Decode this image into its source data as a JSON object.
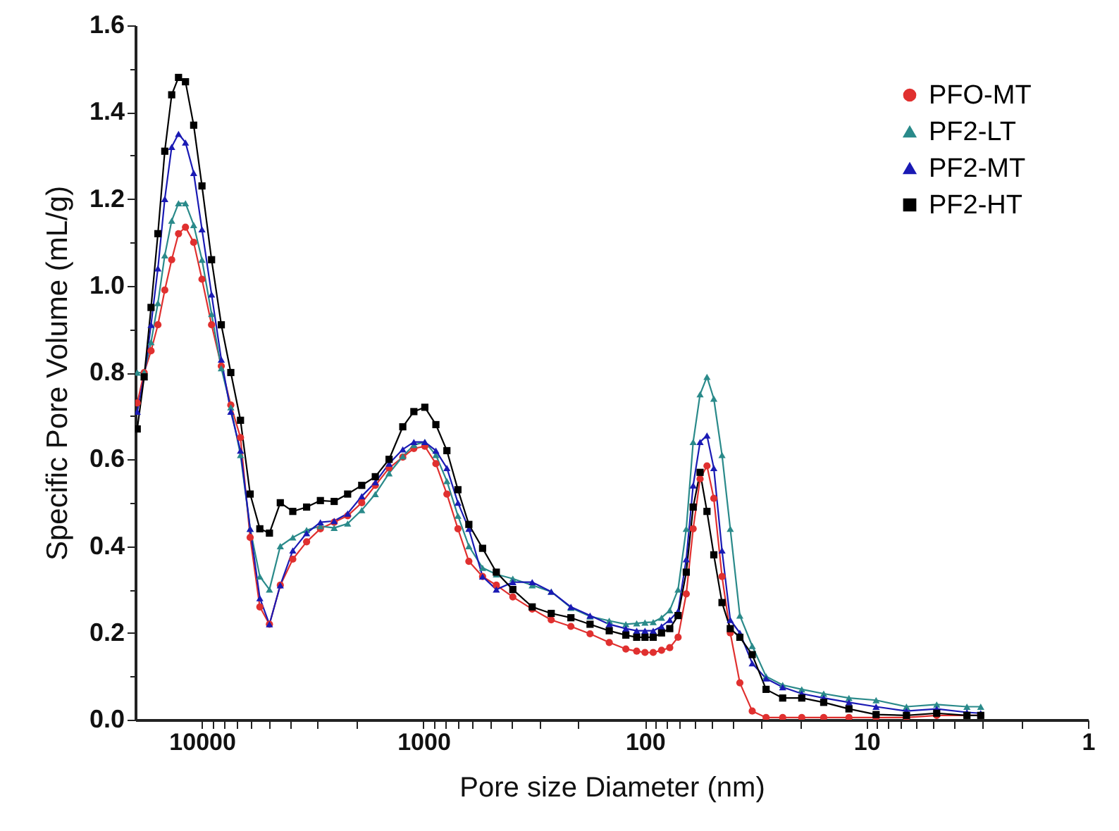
{
  "chart_data": {
    "type": "line",
    "xlabel": "Pore size Diameter (nm)",
    "ylabel": "Specific Pore Volume (mL/g)",
    "log": "x",
    "grid": false,
    "legend": "top right",
    "line_style": "solid",
    "xlim": [
      20000,
      1
    ],
    "xticks": [
      {
        "value": 9000,
        "label": null
      },
      {
        "value": 8000,
        "label": null
      },
      {
        "value": 7000,
        "label": null
      },
      {
        "value": 6000,
        "label": null
      },
      {
        "value": 5000,
        "label": null
      },
      {
        "value": 4000,
        "label": null
      },
      {
        "value": 3000,
        "label": null
      },
      {
        "value": 2000,
        "label": null
      },
      10000,
      1000,
      {
        "value": 900,
        "label": null
      },
      {
        "value": 800,
        "label": null
      },
      {
        "value": 700,
        "label": null
      },
      {
        "value": 600,
        "label": null
      },
      {
        "value": 500,
        "label": null
      },
      {
        "value": 400,
        "label": null
      },
      {
        "value": 300,
        "label": null
      },
      {
        "value": 200,
        "label": null
      },
      100,
      {
        "value": 90,
        "label": null
      },
      {
        "value": 80,
        "label": null
      },
      {
        "value": 70,
        "label": null
      },
      {
        "value": 60,
        "label": null
      },
      {
        "value": 50,
        "label": null
      },
      {
        "value": 40,
        "label": null
      },
      {
        "value": 30,
        "label": null
      },
      {
        "value": 20,
        "label": null
      },
      10,
      {
        "value": 9,
        "label": null
      },
      {
        "value": 8,
        "label": null
      },
      {
        "value": 7,
        "label": null
      },
      {
        "value": 6,
        "label": null
      },
      {
        "value": 5,
        "label": null
      },
      {
        "value": 4,
        "label": null
      },
      {
        "value": 3,
        "label": null
      },
      {
        "value": 2,
        "label": null
      },
      1
    ],
    "ylim": [
      0,
      1.6
    ],
    "yticks": [
      {
        "value": 0,
        "label": "0.0"
      },
      {
        "value": 0.1,
        "label": null
      },
      0.2,
      {
        "value": 0.3,
        "label": null
      },
      0.4,
      {
        "value": 0.5,
        "label": null
      },
      0.6,
      {
        "value": 0.7,
        "label": null
      },
      0.8,
      {
        "value": 0.9,
        "label": null
      },
      {
        "value": 1,
        "label": "1.0"
      },
      {
        "value": 1.1,
        "label": null
      },
      1.2,
      {
        "value": 1.3,
        "label": null
      },
      1.4,
      {
        "value": 1.5,
        "label": null
      },
      1.6
    ],
    "x": [
      19600,
      18240,
      16980,
      15810,
      14720,
      13700,
      12760,
      11870,
      10900,
      10000,
      9050,
      8180,
      7410,
      6700,
      6060,
      5480,
      4960,
      4430,
      3890,
      3370,
      2920,
      2530,
      2200,
      1900,
      1650,
      1430,
      1240,
      1105,
      986,
      879,
      784,
      699,
      624,
      541,
      469,
      395,
      323,
      265,
      216,
      177,
      145,
      122,
      109,
      100,
      91.8,
      84.2,
      77.3,
      70.9,
      65.1,
      60.6,
      56.4,
      52.5,
      48.9,
      44.9,
      41.2,
      37.3,
      32.8,
      28.4,
      23.9,
      19.6,
      15.6,
      12.0,
      9.05,
      6.6,
      4.82,
      3.52,
      3.05
    ],
    "series": [
      {
        "name": "PFO-MT",
        "color": "#e0302f",
        "marker": "circle",
        "values": [
          0.73,
          0.8,
          0.85,
          0.91,
          0.99,
          1.06,
          1.12,
          1.135,
          1.1,
          1.015,
          0.91,
          0.815,
          0.725,
          0.65,
          0.42,
          0.26,
          0.22,
          0.31,
          0.37,
          0.41,
          0.44,
          0.455,
          0.47,
          0.5,
          0.54,
          0.58,
          0.605,
          0.625,
          0.63,
          0.59,
          0.52,
          0.44,
          0.365,
          0.33,
          0.31,
          0.283,
          0.255,
          0.23,
          0.215,
          0.198,
          0.178,
          0.163,
          0.158,
          0.155,
          0.155,
          0.16,
          0.166,
          0.19,
          0.29,
          0.44,
          0.555,
          0.585,
          0.51,
          0.33,
          0.2,
          0.085,
          0.02,
          0.005,
          0.005,
          0.005,
          0.005,
          0.005,
          0.005,
          0.005,
          0.01,
          0.01,
          0.01
        ]
      },
      {
        "name": "PF2-LT",
        "color": "#2a8a8a",
        "marker": "triangle",
        "values": [
          0.8,
          0.8,
          0.87,
          0.96,
          1.07,
          1.15,
          1.19,
          1.19,
          1.14,
          1.06,
          0.935,
          0.81,
          0.72,
          0.61,
          0.44,
          0.33,
          0.3,
          0.4,
          0.42,
          0.437,
          0.446,
          0.442,
          0.452,
          0.483,
          0.52,
          0.568,
          0.607,
          0.633,
          0.64,
          0.61,
          0.55,
          0.47,
          0.4,
          0.35,
          0.335,
          0.325,
          0.31,
          0.295,
          0.258,
          0.238,
          0.228,
          0.22,
          0.222,
          0.224,
          0.225,
          0.235,
          0.252,
          0.3,
          0.44,
          0.64,
          0.75,
          0.79,
          0.74,
          0.61,
          0.44,
          0.24,
          0.17,
          0.1,
          0.08,
          0.07,
          0.06,
          0.05,
          0.045,
          0.03,
          0.035,
          0.03,
          0.03
        ]
      },
      {
        "name": "PF2-MT",
        "color": "#1a1ab4",
        "marker": "triangle",
        "values": [
          0.71,
          0.79,
          0.91,
          1.04,
          1.2,
          1.32,
          1.35,
          1.33,
          1.26,
          1.13,
          0.98,
          0.83,
          0.71,
          0.62,
          0.44,
          0.28,
          0.22,
          0.31,
          0.39,
          0.43,
          0.455,
          0.458,
          0.475,
          0.515,
          0.547,
          0.59,
          0.623,
          0.64,
          0.64,
          0.62,
          0.58,
          0.5,
          0.44,
          0.33,
          0.3,
          0.317,
          0.317,
          0.295,
          0.26,
          0.24,
          0.22,
          0.21,
          0.205,
          0.205,
          0.205,
          0.215,
          0.23,
          0.25,
          0.37,
          0.54,
          0.64,
          0.655,
          0.58,
          0.39,
          0.23,
          0.2,
          0.13,
          0.095,
          0.075,
          0.06,
          0.05,
          0.04,
          0.03,
          0.02,
          0.025,
          0.017,
          0.015
        ]
      },
      {
        "name": "PF2-HT",
        "color": "#000000",
        "marker": "square",
        "values": [
          0.67,
          0.79,
          0.95,
          1.12,
          1.31,
          1.44,
          1.48,
          1.47,
          1.37,
          1.23,
          1.06,
          0.91,
          0.8,
          0.69,
          0.52,
          0.44,
          0.43,
          0.5,
          0.48,
          0.49,
          0.505,
          0.503,
          0.52,
          0.54,
          0.56,
          0.6,
          0.675,
          0.71,
          0.72,
          0.68,
          0.62,
          0.53,
          0.45,
          0.395,
          0.34,
          0.3,
          0.26,
          0.245,
          0.235,
          0.22,
          0.205,
          0.195,
          0.19,
          0.19,
          0.19,
          0.2,
          0.21,
          0.24,
          0.34,
          0.49,
          0.57,
          0.48,
          0.38,
          0.27,
          0.21,
          0.19,
          0.15,
          0.07,
          0.05,
          0.05,
          0.04,
          0.025,
          0.012,
          0.01,
          0.015,
          0.01,
          0.01
        ]
      }
    ]
  }
}
